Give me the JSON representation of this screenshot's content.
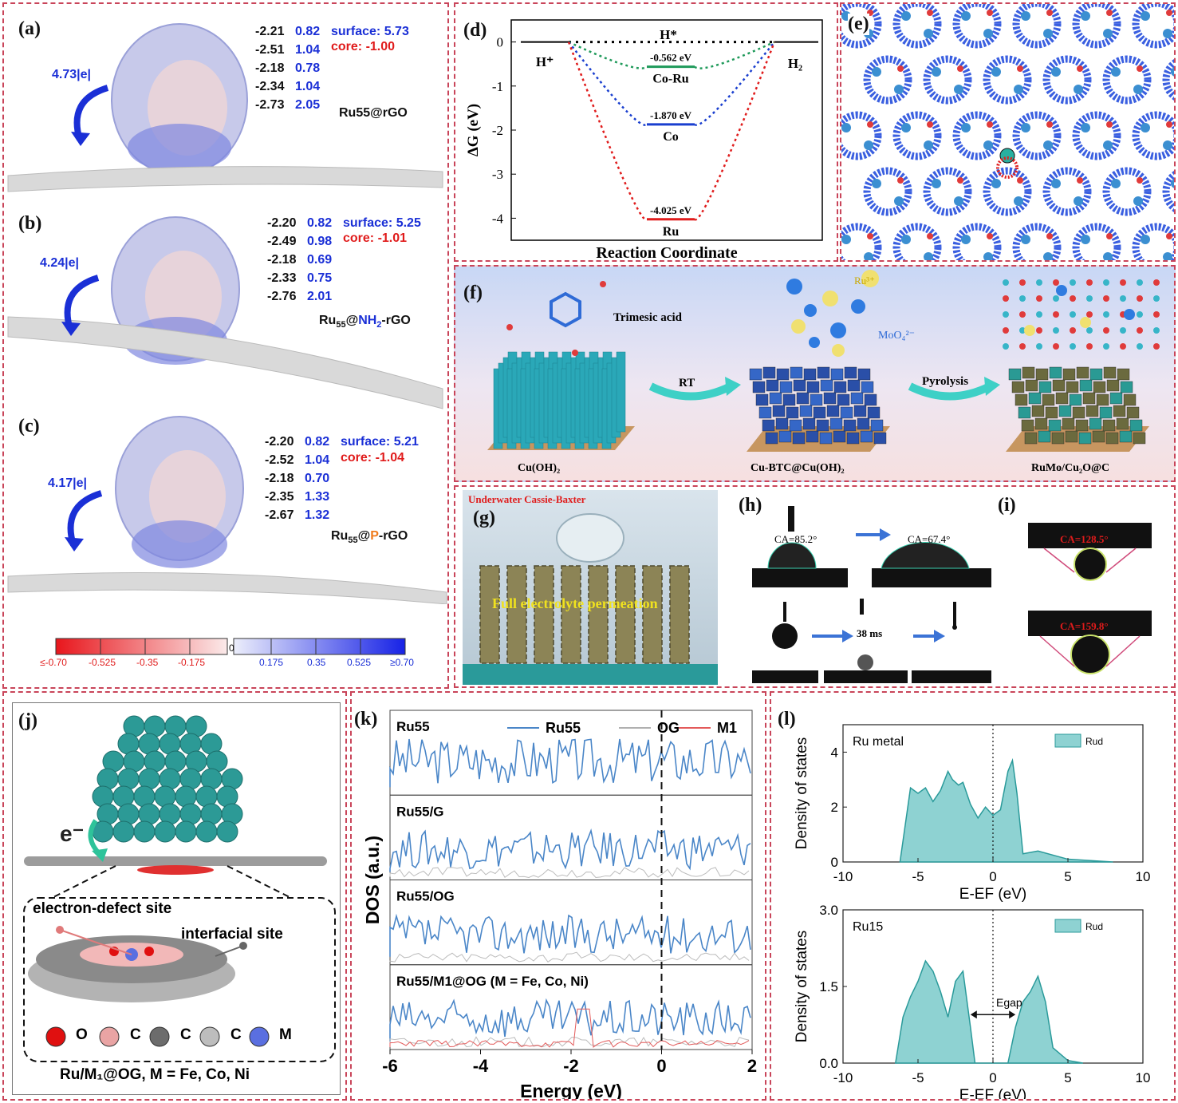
{
  "panels": {
    "a": {
      "label": "(a)",
      "transfer": "4.73|e|",
      "charges": [
        {
          "left": "-2.21",
          "right": "0.82"
        },
        {
          "left": "-2.51",
          "right": "1.04"
        },
        {
          "left": "-2.18",
          "right": "0.78"
        },
        {
          "left": "-2.34",
          "right": "1.04"
        },
        {
          "left": "-2.73",
          "right": "2.05"
        }
      ],
      "surface": "surface: 5.73",
      "core": "core: -1.00",
      "name": "Ru55@rGO"
    },
    "b": {
      "label": "(b)",
      "transfer": "4.24|e|",
      "charges": [
        {
          "left": "-2.20",
          "right": "0.82"
        },
        {
          "left": "-2.49",
          "right": "0.98"
        },
        {
          "left": "-2.18",
          "right": "0.69"
        },
        {
          "left": "-2.33",
          "right": "0.75"
        },
        {
          "left": "-2.76",
          "right": "2.01"
        }
      ],
      "surface": "surface: 5.25",
      "core": "core: -1.01",
      "name_pre": "Ru",
      "name_sub": "55",
      "name_at": "@",
      "name_mid": "NH",
      "name_mid_sub": "2",
      "name_post": "-rGO"
    },
    "c": {
      "label": "(c)",
      "transfer": "4.17|e|",
      "charges": [
        {
          "left": "-2.20",
          "right": "0.82"
        },
        {
          "left": "-2.52",
          "right": "1.04"
        },
        {
          "left": "-2.18",
          "right": "0.70"
        },
        {
          "left": "-2.35",
          "right": "1.33"
        },
        {
          "left": "-2.67",
          "right": "1.32"
        }
      ],
      "surface": "surface: 5.21",
      "core": "core: -1.04",
      "name_pre": "Ru",
      "name_sub": "55",
      "name_at": "@",
      "name_mid": "P",
      "name_post": "-rGO"
    },
    "colorbar": {
      "ticks": [
        "≤-0.70",
        "-0.525",
        "-0.35",
        "-0.175",
        "0",
        "0.175",
        "0.35",
        "0.525",
        "≥0.70"
      ],
      "neg_color": "#e8161c",
      "pos_color": "#1722e6"
    },
    "d": {
      "label": "(d)"
    },
    "e": {
      "label": "(e)"
    },
    "f": {
      "label": "(f)",
      "trimesic": "Trimesic acid",
      "ru_ion": "Ru³⁺",
      "moo4": "MoO₄²⁻",
      "rt": "RT",
      "pyrolysis": "Pyrolysis",
      "cap1": "Cu(OH)₂",
      "cap2": "Cu-BTC@Cu(OH)₂",
      "cap3": "RuMo/Cu₂O@C"
    },
    "g": {
      "label": "(g)",
      "title": "Underwater Cassie-Baxter",
      "text": "Full electrolyte permeation"
    },
    "h": {
      "label": "(h)",
      "ca1": "CA=85.2°",
      "ca2": "CA=67.4°",
      "time": "38 ms"
    },
    "i": {
      "label": "(i)",
      "ca1": "CA=128.5°",
      "ca2": "CA=159.8°"
    },
    "j": {
      "label": "(j)",
      "electron": "e⁻",
      "defect": "electron-defect site",
      "interfacial": "interfacial site",
      "legend": [
        "O",
        "C",
        "C",
        "C",
        "M"
      ],
      "legend_colors": [
        "#e01010",
        "#e9a4a4",
        "#6c6c6c",
        "#bdbdbd",
        "#5a6fe0"
      ],
      "caption": "Ru/M₁@OG, M = Fe, Co, Ni"
    },
    "k": {
      "label": "(k)"
    },
    "l": {
      "label": "(l)"
    }
  },
  "chart_data": [
    {
      "id": "d",
      "type": "line",
      "ylabel": "ΔG (eV)",
      "xlabel": "Reaction Coordinate",
      "ylim": [
        -4.5,
        0.5
      ],
      "yticks": [
        "0",
        "-1",
        "-2",
        "-3",
        "-4"
      ],
      "top_label": "H*",
      "left_label": "H⁺",
      "right_label": "H₂",
      "series": [
        {
          "name": "Co-Ru",
          "value": -0.562,
          "value_label": "-0.562 eV",
          "color": "#1f9a5a"
        },
        {
          "name": "Co",
          "value": -1.87,
          "value_label": "-1.870 eV",
          "color": "#1a3fcf"
        },
        {
          "name": "Ru",
          "value": -4.025,
          "value_label": "-4.025 eV",
          "color": "#e01c1c"
        }
      ]
    },
    {
      "id": "k",
      "type": "line",
      "ylabel": "DOS (a.u.)",
      "xlabel": "Energy (eV)",
      "xlim": [
        -6,
        2
      ],
      "xticks": [
        "-6",
        "-4",
        "-2",
        "0",
        "2"
      ],
      "legend": [
        "Ru55",
        "OG",
        "M1"
      ],
      "legend_colors": [
        "#4a86c8",
        "#b0b0b0",
        "#e35a5a"
      ],
      "subplots": [
        {
          "title": "Ru55",
          "has_og": false,
          "has_m": false
        },
        {
          "title": "Ru55/G",
          "has_og": true,
          "has_m": false
        },
        {
          "title": "Ru55/OG",
          "has_og": true,
          "has_m": false
        },
        {
          "title": "Ru55/M1@OG (M = Fe, Co, Ni)",
          "has_og": true,
          "has_m": true
        }
      ]
    },
    {
      "id": "l",
      "type": "area",
      "ylabel": "Density of states",
      "xlabel": "E-EF (eV)",
      "xlim": [
        -10,
        10
      ],
      "xticks": [
        "-10",
        "-5",
        "0",
        "5",
        "10"
      ],
      "subplots": [
        {
          "title": "Ru metal",
          "legend": "Rud",
          "ylim": [
            0,
            5
          ],
          "yticks": [
            "0",
            "2",
            "4"
          ],
          "x": [
            -6.2,
            -5.5,
            -5.0,
            -4.5,
            -4.0,
            -3.5,
            -3.0,
            -2.7,
            -2.3,
            -2.0,
            -1.5,
            -1.0,
            -0.5,
            0,
            0.5,
            1.0,
            1.3,
            1.6,
            2.0,
            3.0,
            5.0,
            8.0
          ],
          "y": [
            0.0,
            2.7,
            2.5,
            2.7,
            2.2,
            2.6,
            3.3,
            3.0,
            2.8,
            2.9,
            2.1,
            1.6,
            2.0,
            1.7,
            1.9,
            3.3,
            3.7,
            2.5,
            0.3,
            0.4,
            0.1,
            0.0
          ]
        },
        {
          "title": "Ru15",
          "legend": "Rud",
          "ylim": [
            0,
            3.0
          ],
          "yticks": [
            "0.0",
            "1.5",
            "3.0"
          ],
          "gap_label": "Egap",
          "x": [
            -6.5,
            -6.0,
            -5.5,
            -5.0,
            -4.5,
            -4.0,
            -3.5,
            -3.0,
            -2.5,
            -2.0,
            -1.5,
            -1.2,
            1.0,
            1.5,
            2.0,
            2.5,
            3.0,
            3.5,
            4.0,
            5.0,
            6.0
          ],
          "y": [
            0.0,
            0.9,
            1.3,
            1.6,
            2.0,
            1.8,
            1.4,
            0.9,
            1.6,
            1.8,
            0.7,
            0.0,
            0.0,
            0.7,
            1.2,
            1.4,
            1.7,
            1.2,
            0.3,
            0.05,
            0.0
          ]
        }
      ]
    }
  ]
}
